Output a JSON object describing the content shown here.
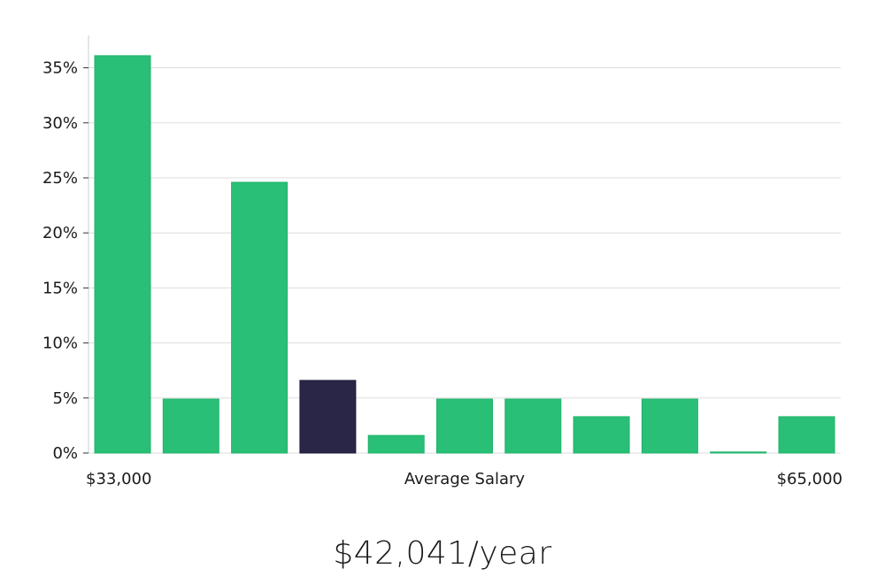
{
  "chart_data": {
    "type": "bar",
    "x_label_start": "$33,000",
    "xlabel": "Average Salary",
    "x_label_end": "$65,000",
    "values": [
      36.1,
      4.9,
      24.6,
      6.6,
      1.6,
      4.9,
      4.9,
      3.3,
      4.9,
      0.05,
      3.3
    ],
    "highlight_index": 3,
    "y_ticks": [
      "0%",
      "5%",
      "10%",
      "15%",
      "20%",
      "25%",
      "30%",
      "35%"
    ],
    "ylim": [
      0,
      37.5
    ],
    "grid": true,
    "colors": {
      "bar": "#29bf76",
      "highlight": "#2a2647",
      "grid": "#dddddd",
      "axis": "#cccccc"
    }
  },
  "summary": {
    "average_salary_text": "$42,041/year"
  }
}
